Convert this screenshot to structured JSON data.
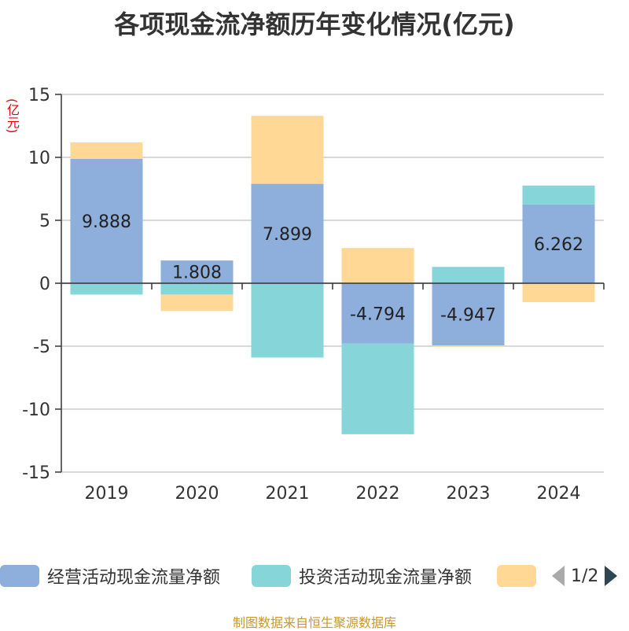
{
  "title": "各项现金流净额历年变化情况(亿元)",
  "unit_label": "(亿元)",
  "source": "制图数据来自恒生聚源数据库",
  "legend": {
    "items": [
      {
        "label": "经营活动现金流量净额",
        "color": "#8eaedb"
      },
      {
        "label": "投资活动现金流量净额",
        "color": "#86d5d8"
      },
      {
        "label": "",
        "color": "#ffd896"
      }
    ],
    "page_text": "1/2"
  },
  "chart_data": {
    "type": "bar",
    "stacked": true,
    "categories": [
      "2019",
      "2020",
      "2021",
      "2022",
      "2023",
      "2024"
    ],
    "ylim": [
      -15,
      15
    ],
    "yticks": [
      15,
      10,
      5,
      0,
      -5,
      -10,
      -15
    ],
    "grid": true,
    "legend_position": "bottom",
    "series": [
      {
        "name": "经营活动现金流量净额",
        "color": "#8eaedb",
        "values": [
          9.888,
          1.808,
          7.899,
          -4.794,
          -4.947,
          6.262
        ],
        "show_labels": true
      },
      {
        "name": "投资活动现金流量净额",
        "color": "#86d5d8",
        "values": [
          -0.9,
          -0.9,
          -5.9,
          -7.2,
          1.3,
          1.5
        ],
        "show_labels": false
      },
      {
        "name": "",
        "color": "#ffd896",
        "values": [
          1.3,
          -1.3,
          5.4,
          2.8,
          -0.1,
          -1.5
        ],
        "show_labels": false
      }
    ]
  }
}
